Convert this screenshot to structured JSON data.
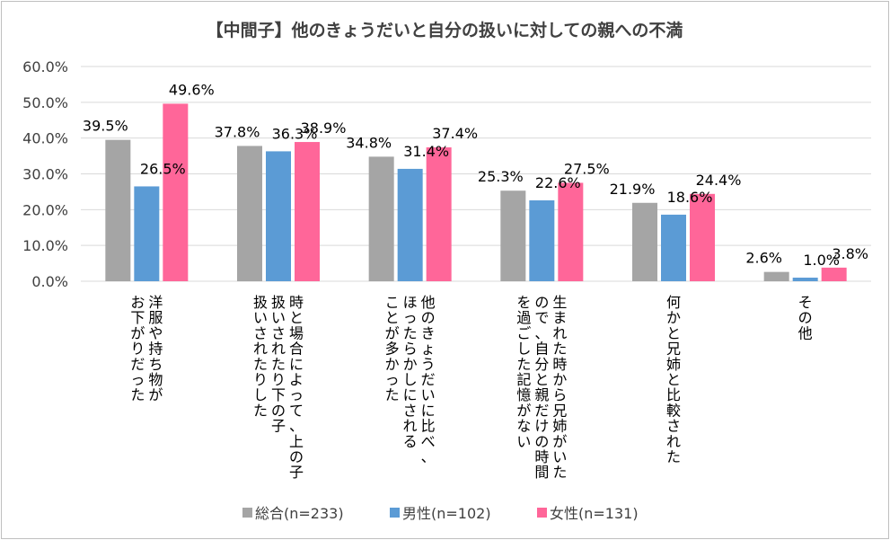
{
  "chart_data": {
    "type": "bar",
    "title": "【中間子】他のきょうだいと自分の扱いに対しての親への不満",
    "categories": [
      [
        "洋服や持ち物が",
        "お下がりだった"
      ],
      [
        "時と場合によって、上の子",
        "扱いされたり下の子",
        "扱いされたりした"
      ],
      [
        "他のきょうだいに比べ、",
        "ほったらかしにされる",
        "ことが多かった"
      ],
      [
        "生まれた時から兄姉がいた",
        "ので、自分と親だけの時間",
        "を過ごした記憶がない"
      ],
      [
        "何かと兄姉と比較された"
      ],
      [
        "その他"
      ]
    ],
    "series": [
      {
        "name": "総合(n=233)",
        "color": "#a5a5a5",
        "values": [
          39.5,
          37.8,
          34.8,
          25.3,
          21.9,
          2.6
        ],
        "labels": [
          "39.5%",
          "37.8%",
          "34.8%",
          "25.3%",
          "21.9%",
          "2.6%"
        ]
      },
      {
        "name": "男性(n=102)",
        "color": "#5b9bd5",
        "values": [
          26.5,
          36.3,
          31.4,
          22.6,
          18.6,
          1.0
        ],
        "labels": [
          "26.5%",
          "36.3%",
          "31.4%",
          "22.6%",
          "18.6%",
          "1.0%"
        ]
      },
      {
        "name": "女性(n=131)",
        "color": "#ff6699",
        "values": [
          49.6,
          38.9,
          37.4,
          27.5,
          24.4,
          3.8
        ],
        "labels": [
          "49.6%",
          "38.9%",
          "37.4%",
          "27.5%",
          "24.4%",
          "3.8%"
        ]
      }
    ],
    "yticks": [
      "0.0%",
      "10.0%",
      "20.0%",
      "30.0%",
      "40.0%",
      "50.0%",
      "60.0%"
    ],
    "ylim": [
      0,
      60
    ],
    "grid": true,
    "legend": "bottom",
    "xlabel": "",
    "ylabel": ""
  }
}
